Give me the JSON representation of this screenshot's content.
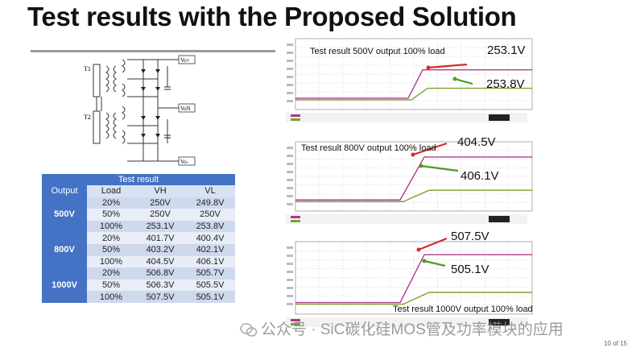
{
  "slide": {
    "title": "Test results with the Proposed Solution",
    "page_number": "10 of 15"
  },
  "schematic": {
    "labels": {
      "t1": "T1",
      "t2": "T2",
      "vo_plus": "Vo+",
      "vo_n": "VoN",
      "vo_minus": "Vo-"
    }
  },
  "table": {
    "title": "Test result",
    "headers": [
      "Output",
      "Load",
      "VH",
      "VL"
    ],
    "groups": [
      {
        "output": "500V",
        "rows": [
          {
            "load": "20%",
            "vh": "250V",
            "vl": "249.8V"
          },
          {
            "load": "50%",
            "vh": "250V",
            "vl": "250V"
          },
          {
            "load": "100%",
            "vh": "253.1V",
            "vl": "253.8V"
          }
        ]
      },
      {
        "output": "800V",
        "rows": [
          {
            "load": "20%",
            "vh": "401.7V",
            "vl": "400.4V"
          },
          {
            "load": "50%",
            "vh": "403.2V",
            "vl": "402.1V"
          },
          {
            "load": "100%",
            "vh": "404.5V",
            "vl": "406.1V"
          }
        ]
      },
      {
        "output": "1000V",
        "rows": [
          {
            "load": "20%",
            "vh": "506.8V",
            "vl": "505.7V"
          },
          {
            "load": "50%",
            "vh": "506.3V",
            "vl": "505.5V"
          },
          {
            "load": "100%",
            "vh": "507.5V",
            "vl": "505.1V"
          }
        ]
      }
    ]
  },
  "scopes": [
    {
      "caption": "Test result 500V output 100% load",
      "upper": "253.1V",
      "lower": "253.8V"
    },
    {
      "caption": "Test result 800V output 100% load",
      "upper": "404.5V",
      "lower": "406.1V"
    },
    {
      "caption": "Test result 1000V output 100% load",
      "upper": "507.5V",
      "lower": "505.1V"
    }
  ],
  "watermark": {
    "text": "公众号 · SiC碳化硅MOS管及功率模块的应用"
  },
  "colors": {
    "accent": "#4472c4",
    "trace_upper": "#b03a8c",
    "trace_lower": "#7aa22e",
    "arrow_upper": "#d62b2b",
    "arrow_lower": "#4a9a2a"
  }
}
